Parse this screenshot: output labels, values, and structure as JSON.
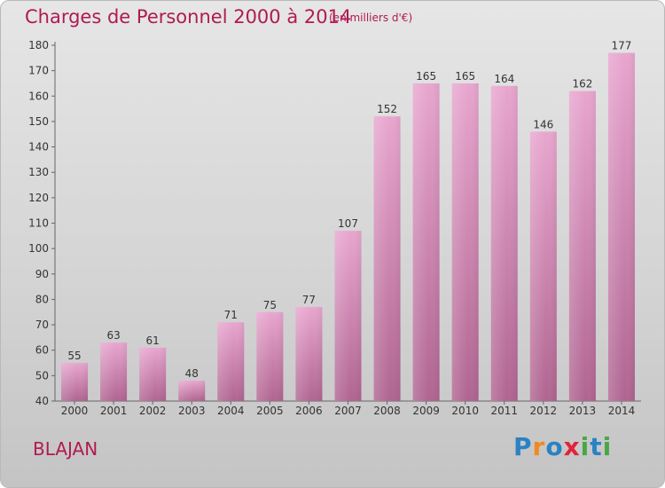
{
  "title": "Charges de Personnel 2000 à 2014",
  "subtitle": "(en milliers d'€)",
  "place": "BLAJAN",
  "logo": {
    "letters": [
      {
        "ch": "P",
        "color": "#2a82c4"
      },
      {
        "ch": "r",
        "color": "#f08a1c"
      },
      {
        "ch": "o",
        "color": "#2a82c4"
      },
      {
        "ch": "x",
        "color": "#e2233b"
      },
      {
        "ch": "i",
        "color": "#49a745"
      },
      {
        "ch": "t",
        "color": "#2a82c4"
      },
      {
        "ch": "i",
        "color": "#49a745"
      }
    ]
  },
  "chart_data": {
    "type": "bar",
    "categories": [
      "2000",
      "2001",
      "2002",
      "2003",
      "2004",
      "2005",
      "2006",
      "2007",
      "2008",
      "2009",
      "2010",
      "2011",
      "2012",
      "2013",
      "2014"
    ],
    "values": [
      55,
      63,
      61,
      48,
      71,
      75,
      77,
      107,
      152,
      165,
      165,
      164,
      146,
      162,
      177
    ],
    "ylim": [
      40,
      180
    ],
    "yticks": [
      40,
      50,
      60,
      70,
      80,
      90,
      100,
      110,
      120,
      130,
      140,
      150,
      160,
      170,
      180
    ],
    "grid": false,
    "bar_color_top": "#e8a6cf",
    "bar_color_bottom": "#b06591"
  }
}
